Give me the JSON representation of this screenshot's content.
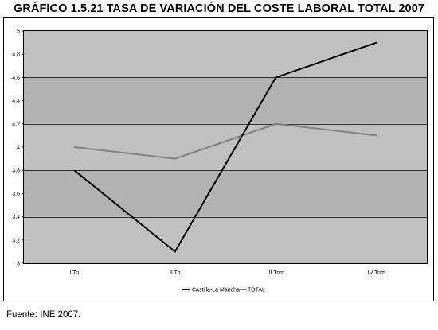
{
  "chart_data": {
    "type": "line",
    "title": "GRÁFICO 1.5.21 TASA DE VARIACIÓN DEL COSTE LABORAL TOTAL 2007",
    "categories": [
      "I Tri",
      "II Tri",
      "III Trim",
      "IV Trim"
    ],
    "series": [
      {
        "name": "Castilla-La Mancha",
        "color": "#000000",
        "values": [
          3.8,
          3.1,
          4.6,
          4.9
        ]
      },
      {
        "name": "TOTAL",
        "color": "#808080",
        "values": [
          4.0,
          3.9,
          4.2,
          4.1
        ]
      }
    ],
    "ylim": [
      3,
      5
    ],
    "yticks": [
      "3",
      "3,2",
      "3,4",
      "3,6",
      "3,8",
      "4",
      "4,2",
      "4,4",
      "4,6",
      "4,8",
      "5"
    ],
    "grid": true,
    "legend": "bottom",
    "colors": {
      "plot_band_light": "#c0c0c0",
      "plot_band_dark": "#b2b2b2",
      "gridline": "#000000"
    }
  },
  "source": "Fuente: INE 2007."
}
